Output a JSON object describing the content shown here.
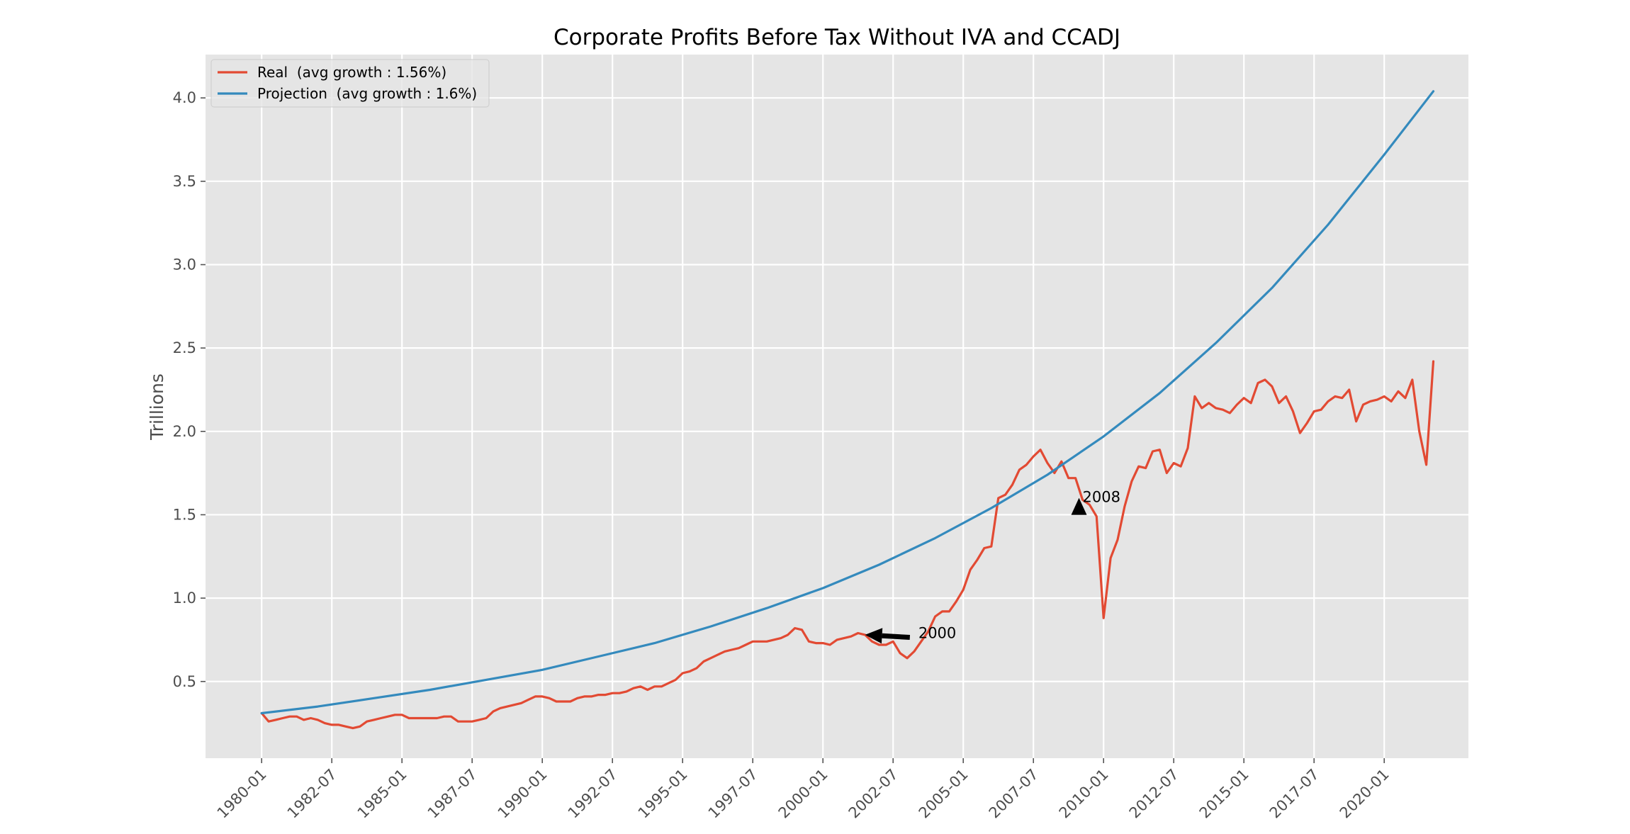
{
  "chart_data": {
    "type": "line",
    "title": "Corporate Profits Before Tax Without IVA and CCADJ",
    "xlabel": "",
    "ylabel": "Trillions",
    "xlim": [
      1978.0,
      2023.0
    ],
    "ylim": [
      0.04,
      4.26
    ],
    "x_ticks": [
      {
        "label": "1980-01",
        "value": 1980.0
      },
      {
        "label": "1982-07",
        "value": 1982.5
      },
      {
        "label": "1985-01",
        "value": 1985.0
      },
      {
        "label": "1987-07",
        "value": 1987.5
      },
      {
        "label": "1990-01",
        "value": 1990.0
      },
      {
        "label": "1992-07",
        "value": 1992.5
      },
      {
        "label": "1995-01",
        "value": 1995.0
      },
      {
        "label": "1997-07",
        "value": 1997.5
      },
      {
        "label": "2000-01",
        "value": 2000.0
      },
      {
        "label": "2002-07",
        "value": 2002.5
      },
      {
        "label": "2005-01",
        "value": 2005.0
      },
      {
        "label": "2007-07",
        "value": 2007.5
      },
      {
        "label": "2010-01",
        "value": 2010.0
      },
      {
        "label": "2012-07",
        "value": 2012.5
      },
      {
        "label": "2015-01",
        "value": 2015.0
      },
      {
        "label": "2017-07",
        "value": 2017.5
      },
      {
        "label": "2020-01",
        "value": 2020.0
      }
    ],
    "y_ticks": [
      {
        "label": "0.5",
        "value": 0.5
      },
      {
        "label": "1.0",
        "value": 1.0
      },
      {
        "label": "1.5",
        "value": 1.5
      },
      {
        "label": "2.0",
        "value": 2.0
      },
      {
        "label": "2.5",
        "value": 2.5
      },
      {
        "label": "3.0",
        "value": 3.0
      },
      {
        "label": "3.5",
        "value": 3.5
      },
      {
        "label": "4.0",
        "value": 4.0
      }
    ],
    "grid": true,
    "legend_position": "top-left",
    "series": [
      {
        "name": "Real  (avg growth : 1.56%)",
        "color": "#e24a33",
        "points": [
          [
            1980.0,
            0.31
          ],
          [
            1980.25,
            0.26
          ],
          [
            1980.5,
            0.27
          ],
          [
            1980.75,
            0.28
          ],
          [
            1981.0,
            0.29
          ],
          [
            1981.25,
            0.29
          ],
          [
            1981.5,
            0.27
          ],
          [
            1981.75,
            0.28
          ],
          [
            1982.0,
            0.27
          ],
          [
            1982.25,
            0.25
          ],
          [
            1982.5,
            0.24
          ],
          [
            1982.75,
            0.24
          ],
          [
            1983.0,
            0.23
          ],
          [
            1983.25,
            0.22
          ],
          [
            1983.5,
            0.23
          ],
          [
            1983.75,
            0.26
          ],
          [
            1984.0,
            0.27
          ],
          [
            1984.25,
            0.28
          ],
          [
            1984.5,
            0.29
          ],
          [
            1984.75,
            0.3
          ],
          [
            1985.0,
            0.3
          ],
          [
            1985.25,
            0.28
          ],
          [
            1985.5,
            0.28
          ],
          [
            1985.75,
            0.28
          ],
          [
            1986.0,
            0.28
          ],
          [
            1986.25,
            0.28
          ],
          [
            1986.5,
            0.29
          ],
          [
            1986.75,
            0.29
          ],
          [
            1987.0,
            0.26
          ],
          [
            1987.25,
            0.26
          ],
          [
            1987.5,
            0.26
          ],
          [
            1987.75,
            0.27
          ],
          [
            1988.0,
            0.28
          ],
          [
            1988.25,
            0.32
          ],
          [
            1988.5,
            0.34
          ],
          [
            1988.75,
            0.35
          ],
          [
            1989.0,
            0.36
          ],
          [
            1989.25,
            0.37
          ],
          [
            1989.5,
            0.39
          ],
          [
            1989.75,
            0.41
          ],
          [
            1990.0,
            0.41
          ],
          [
            1990.25,
            0.4
          ],
          [
            1990.5,
            0.38
          ],
          [
            1990.75,
            0.38
          ],
          [
            1991.0,
            0.38
          ],
          [
            1991.25,
            0.4
          ],
          [
            1991.5,
            0.41
          ],
          [
            1991.75,
            0.41
          ],
          [
            1992.0,
            0.42
          ],
          [
            1992.25,
            0.42
          ],
          [
            1992.5,
            0.43
          ],
          [
            1992.75,
            0.43
          ],
          [
            1993.0,
            0.44
          ],
          [
            1993.25,
            0.46
          ],
          [
            1993.5,
            0.47
          ],
          [
            1993.75,
            0.45
          ],
          [
            1994.0,
            0.47
          ],
          [
            1994.25,
            0.47
          ],
          [
            1994.5,
            0.49
          ],
          [
            1994.75,
            0.51
          ],
          [
            1995.0,
            0.55
          ],
          [
            1995.25,
            0.56
          ],
          [
            1995.5,
            0.58
          ],
          [
            1995.75,
            0.62
          ],
          [
            1996.0,
            0.64
          ],
          [
            1996.25,
            0.66
          ],
          [
            1996.5,
            0.68
          ],
          [
            1996.75,
            0.69
          ],
          [
            1997.0,
            0.7
          ],
          [
            1997.25,
            0.72
          ],
          [
            1997.5,
            0.74
          ],
          [
            1997.75,
            0.74
          ],
          [
            1998.0,
            0.74
          ],
          [
            1998.25,
            0.75
          ],
          [
            1998.5,
            0.76
          ],
          [
            1998.75,
            0.78
          ],
          [
            1999.0,
            0.82
          ],
          [
            1999.25,
            0.81
          ],
          [
            1999.5,
            0.74
          ],
          [
            1999.75,
            0.73
          ],
          [
            2000.0,
            0.73
          ],
          [
            2000.25,
            0.72
          ],
          [
            2000.5,
            0.75
          ],
          [
            2000.75,
            0.76
          ],
          [
            2001.0,
            0.77
          ],
          [
            2001.25,
            0.79
          ],
          [
            2001.5,
            0.78
          ],
          [
            2001.75,
            0.74
          ],
          [
            2002.0,
            0.72
          ],
          [
            2002.25,
            0.72
          ],
          [
            2002.5,
            0.74
          ],
          [
            2002.75,
            0.67
          ],
          [
            2003.0,
            0.64
          ],
          [
            2003.25,
            0.68
          ],
          [
            2003.5,
            0.74
          ],
          [
            2003.75,
            0.8
          ],
          [
            2004.0,
            0.89
          ],
          [
            2004.25,
            0.92
          ],
          [
            2004.5,
            0.92
          ],
          [
            2004.75,
            0.98
          ],
          [
            2005.0,
            1.05
          ],
          [
            2005.25,
            1.17
          ],
          [
            2005.5,
            1.23
          ],
          [
            2005.75,
            1.3
          ],
          [
            2006.0,
            1.31
          ],
          [
            2006.25,
            1.6
          ],
          [
            2006.5,
            1.62
          ],
          [
            2006.75,
            1.68
          ],
          [
            2007.0,
            1.77
          ],
          [
            2007.25,
            1.8
          ],
          [
            2007.5,
            1.85
          ],
          [
            2007.75,
            1.89
          ],
          [
            2008.0,
            1.81
          ],
          [
            2008.25,
            1.75
          ],
          [
            2008.5,
            1.82
          ],
          [
            2008.75,
            1.72
          ],
          [
            2009.0,
            1.72
          ],
          [
            2009.25,
            1.59
          ],
          [
            2009.5,
            1.56
          ],
          [
            2009.75,
            1.49
          ],
          [
            2010.0,
            0.88
          ],
          [
            2010.25,
            1.24
          ],
          [
            2010.5,
            1.35
          ],
          [
            2010.75,
            1.55
          ],
          [
            2011.0,
            1.7
          ],
          [
            2011.25,
            1.79
          ],
          [
            2011.5,
            1.78
          ],
          [
            2011.75,
            1.88
          ],
          [
            2012.0,
            1.89
          ],
          [
            2012.25,
            1.75
          ],
          [
            2012.5,
            1.81
          ],
          [
            2012.75,
            1.79
          ],
          [
            2013.0,
            1.9
          ],
          [
            2013.25,
            2.21
          ],
          [
            2013.5,
            2.14
          ],
          [
            2013.75,
            2.17
          ],
          [
            2014.0,
            2.14
          ],
          [
            2014.25,
            2.13
          ],
          [
            2014.5,
            2.11
          ],
          [
            2014.75,
            2.16
          ],
          [
            2015.0,
            2.2
          ],
          [
            2015.25,
            2.17
          ],
          [
            2015.5,
            2.29
          ],
          [
            2015.75,
            2.31
          ],
          [
            2016.0,
            2.27
          ],
          [
            2016.25,
            2.17
          ],
          [
            2016.5,
            2.21
          ],
          [
            2016.75,
            2.12
          ],
          [
            2017.0,
            1.99
          ],
          [
            2017.25,
            2.05
          ],
          [
            2017.5,
            2.12
          ],
          [
            2017.75,
            2.13
          ],
          [
            2018.0,
            2.18
          ],
          [
            2018.25,
            2.21
          ],
          [
            2018.5,
            2.2
          ],
          [
            2018.75,
            2.25
          ],
          [
            2019.0,
            2.06
          ],
          [
            2019.25,
            2.16
          ],
          [
            2019.5,
            2.18
          ],
          [
            2019.75,
            2.19
          ],
          [
            2020.0,
            2.21
          ],
          [
            2020.25,
            2.18
          ],
          [
            2020.5,
            2.24
          ],
          [
            2020.75,
            2.2
          ],
          [
            2021.0,
            2.31
          ],
          [
            2021.25,
            2.0
          ],
          [
            2021.5,
            1.8
          ],
          [
            2021.75,
            2.42
          ]
        ]
      },
      {
        "name": "Projection  (avg growth : 1.6%)",
        "color": "#348abd",
        "points": [
          [
            1980.0,
            0.31
          ],
          [
            1982.0,
            0.35
          ],
          [
            1984.0,
            0.4
          ],
          [
            1986.0,
            0.45
          ],
          [
            1988.0,
            0.51
          ],
          [
            1990.0,
            0.57
          ],
          [
            1992.0,
            0.65
          ],
          [
            1994.0,
            0.73
          ],
          [
            1996.0,
            0.83
          ],
          [
            1998.0,
            0.94
          ],
          [
            2000.0,
            1.06
          ],
          [
            2002.0,
            1.2
          ],
          [
            2004.0,
            1.36
          ],
          [
            2006.0,
            1.54
          ],
          [
            2008.0,
            1.74
          ],
          [
            2010.0,
            1.97
          ],
          [
            2012.0,
            2.23
          ],
          [
            2014.0,
            2.53
          ],
          [
            2016.0,
            2.86
          ],
          [
            2018.0,
            3.24
          ],
          [
            2020.0,
            3.66
          ],
          [
            2021.75,
            4.04
          ]
        ]
      }
    ],
    "annotations": [
      {
        "text": "2000",
        "point": [
          2001.5,
          0.78
        ],
        "text_at": [
          2003.4,
          0.79
        ],
        "arrow": "left-arrow"
      },
      {
        "text": "2008",
        "point": [
          2009.25,
          1.55
        ],
        "text_at": [
          2009.25,
          1.55
        ],
        "marker": "up-triangle"
      }
    ]
  }
}
